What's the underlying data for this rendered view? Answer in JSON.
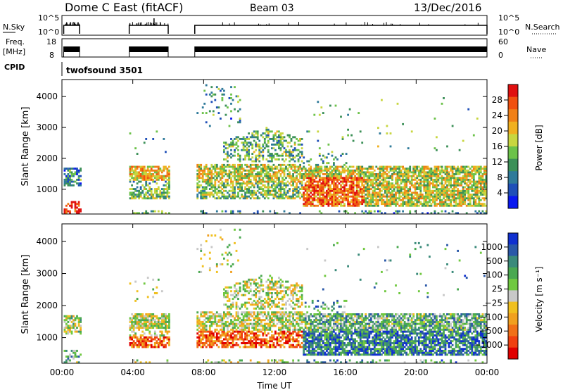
{
  "header": {
    "title": "Dome C East (fitACF)",
    "beam": "Beam 03",
    "date": "13/Dec/2016"
  },
  "strips": {
    "nsky_label": "N.Sky",
    "nsearch_label": "N.Search",
    "nsky_ticks": [
      "10^5",
      "10^0"
    ],
    "nsearch_ticks": [
      "10^5",
      "10^0"
    ],
    "freq_label_1": "Freq.",
    "freq_label_2": "[MHz]",
    "freq_ticks": [
      "18",
      "8"
    ],
    "nave_label": "Nave",
    "nave_ticks": [
      "60",
      "0"
    ],
    "cpid_label": "CPID",
    "cpid_value": "twofsound 3501"
  },
  "chart_data": [
    {
      "type": "heatmap",
      "name": "power",
      "ylabel": "Slant Range [km]",
      "xlabel": "",
      "yticks": [
        "1000",
        "2000",
        "3000",
        "4000"
      ],
      "ylim": [
        200,
        4550
      ],
      "xlim": [
        0,
        24
      ],
      "colorbar": {
        "label": "Power [dB]",
        "ticks": [
          "4",
          "8",
          "12",
          "16",
          "20",
          "24",
          "28"
        ],
        "colors": [
          "#0a18f0",
          "#1f4fb8",
          "#2f7a9a",
          "#3c9058",
          "#6cc24a",
          "#c8d640",
          "#f0b020",
          "#f08018",
          "#f05010",
          "#e01010"
        ]
      },
      "data_periods_hours": [
        [
          0.1,
          1.0
        ],
        [
          3.8,
          6.0
        ],
        [
          7.5,
          24.0
        ]
      ]
    },
    {
      "type": "heatmap",
      "name": "velocity",
      "ylabel": "Slant Range [km]",
      "xlabel": "Time UT",
      "yticks": [
        "1000",
        "2000",
        "3000",
        "4000"
      ],
      "xticks": [
        "00:00",
        "04:00",
        "08:00",
        "12:00",
        "16:00",
        "20:00",
        "00:00"
      ],
      "ylim": [
        200,
        4550
      ],
      "xlim": [
        0,
        24
      ],
      "colorbar": {
        "label": "Velocity [m s⁻¹]",
        "ticks": [
          "1000",
          "500",
          "100",
          "25",
          "−25",
          "−100",
          "−500",
          "−1000"
        ],
        "colors": [
          "#1030d0",
          "#2a58a8",
          "#3a8a7a",
          "#4aa850",
          "#70c840",
          "#c8c8c8",
          "#f0c020",
          "#f0a020",
          "#f07018",
          "#f04010",
          "#e00000"
        ]
      },
      "data_periods_hours": [
        [
          0.1,
          1.0
        ],
        [
          3.8,
          6.0
        ],
        [
          7.5,
          24.0
        ]
      ]
    }
  ]
}
